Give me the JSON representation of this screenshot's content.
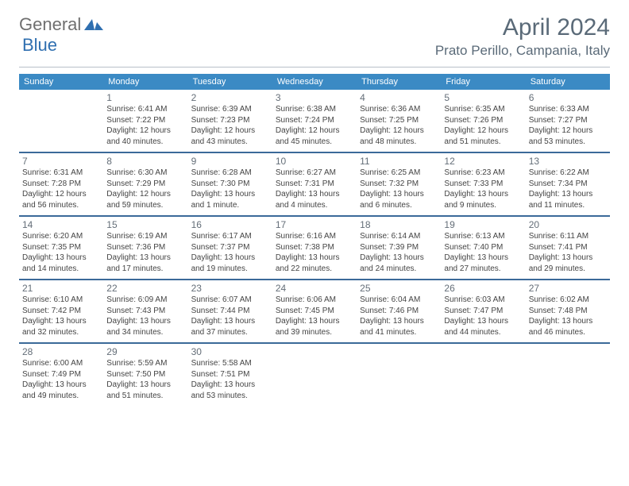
{
  "logo": {
    "general": "General",
    "blue": "Blue",
    "icon_color": "#2f6fb0"
  },
  "title": "April 2024",
  "location": "Prato Perillo, Campania, Italy",
  "colors": {
    "header_bg": "#3b8ac4",
    "header_text": "#ffffff",
    "divider": "#3b6a99",
    "logo_gray": "#6f6f6f",
    "logo_blue": "#2f6fb0",
    "title_color": "#5a6a78"
  },
  "fonts": {
    "month_title_pt": 30,
    "location_pt": 17,
    "dow_pt": 11,
    "daynum_pt": 12,
    "body_pt": 10
  },
  "days_of_week": [
    "Sunday",
    "Monday",
    "Tuesday",
    "Wednesday",
    "Thursday",
    "Friday",
    "Saturday"
  ],
  "weeks": [
    [
      null,
      {
        "n": "1",
        "sr": "6:41 AM",
        "ss": "7:22 PM",
        "dl": "12 hours and 40 minutes."
      },
      {
        "n": "2",
        "sr": "6:39 AM",
        "ss": "7:23 PM",
        "dl": "12 hours and 43 minutes."
      },
      {
        "n": "3",
        "sr": "6:38 AM",
        "ss": "7:24 PM",
        "dl": "12 hours and 45 minutes."
      },
      {
        "n": "4",
        "sr": "6:36 AM",
        "ss": "7:25 PM",
        "dl": "12 hours and 48 minutes."
      },
      {
        "n": "5",
        "sr": "6:35 AM",
        "ss": "7:26 PM",
        "dl": "12 hours and 51 minutes."
      },
      {
        "n": "6",
        "sr": "6:33 AM",
        "ss": "7:27 PM",
        "dl": "12 hours and 53 minutes."
      }
    ],
    [
      {
        "n": "7",
        "sr": "6:31 AM",
        "ss": "7:28 PM",
        "dl": "12 hours and 56 minutes."
      },
      {
        "n": "8",
        "sr": "6:30 AM",
        "ss": "7:29 PM",
        "dl": "12 hours and 59 minutes."
      },
      {
        "n": "9",
        "sr": "6:28 AM",
        "ss": "7:30 PM",
        "dl": "13 hours and 1 minute."
      },
      {
        "n": "10",
        "sr": "6:27 AM",
        "ss": "7:31 PM",
        "dl": "13 hours and 4 minutes."
      },
      {
        "n": "11",
        "sr": "6:25 AM",
        "ss": "7:32 PM",
        "dl": "13 hours and 6 minutes."
      },
      {
        "n": "12",
        "sr": "6:23 AM",
        "ss": "7:33 PM",
        "dl": "13 hours and 9 minutes."
      },
      {
        "n": "13",
        "sr": "6:22 AM",
        "ss": "7:34 PM",
        "dl": "13 hours and 11 minutes."
      }
    ],
    [
      {
        "n": "14",
        "sr": "6:20 AM",
        "ss": "7:35 PM",
        "dl": "13 hours and 14 minutes."
      },
      {
        "n": "15",
        "sr": "6:19 AM",
        "ss": "7:36 PM",
        "dl": "13 hours and 17 minutes."
      },
      {
        "n": "16",
        "sr": "6:17 AM",
        "ss": "7:37 PM",
        "dl": "13 hours and 19 minutes."
      },
      {
        "n": "17",
        "sr": "6:16 AM",
        "ss": "7:38 PM",
        "dl": "13 hours and 22 minutes."
      },
      {
        "n": "18",
        "sr": "6:14 AM",
        "ss": "7:39 PM",
        "dl": "13 hours and 24 minutes."
      },
      {
        "n": "19",
        "sr": "6:13 AM",
        "ss": "7:40 PM",
        "dl": "13 hours and 27 minutes."
      },
      {
        "n": "20",
        "sr": "6:11 AM",
        "ss": "7:41 PM",
        "dl": "13 hours and 29 minutes."
      }
    ],
    [
      {
        "n": "21",
        "sr": "6:10 AM",
        "ss": "7:42 PM",
        "dl": "13 hours and 32 minutes."
      },
      {
        "n": "22",
        "sr": "6:09 AM",
        "ss": "7:43 PM",
        "dl": "13 hours and 34 minutes."
      },
      {
        "n": "23",
        "sr": "6:07 AM",
        "ss": "7:44 PM",
        "dl": "13 hours and 37 minutes."
      },
      {
        "n": "24",
        "sr": "6:06 AM",
        "ss": "7:45 PM",
        "dl": "13 hours and 39 minutes."
      },
      {
        "n": "25",
        "sr": "6:04 AM",
        "ss": "7:46 PM",
        "dl": "13 hours and 41 minutes."
      },
      {
        "n": "26",
        "sr": "6:03 AM",
        "ss": "7:47 PM",
        "dl": "13 hours and 44 minutes."
      },
      {
        "n": "27",
        "sr": "6:02 AM",
        "ss": "7:48 PM",
        "dl": "13 hours and 46 minutes."
      }
    ],
    [
      {
        "n": "28",
        "sr": "6:00 AM",
        "ss": "7:49 PM",
        "dl": "13 hours and 49 minutes."
      },
      {
        "n": "29",
        "sr": "5:59 AM",
        "ss": "7:50 PM",
        "dl": "13 hours and 51 minutes."
      },
      {
        "n": "30",
        "sr": "5:58 AM",
        "ss": "7:51 PM",
        "dl": "13 hours and 53 minutes."
      },
      null,
      null,
      null,
      null
    ]
  ],
  "labels": {
    "sunrise": "Sunrise:",
    "sunset": "Sunset:",
    "daylight": "Daylight:"
  }
}
